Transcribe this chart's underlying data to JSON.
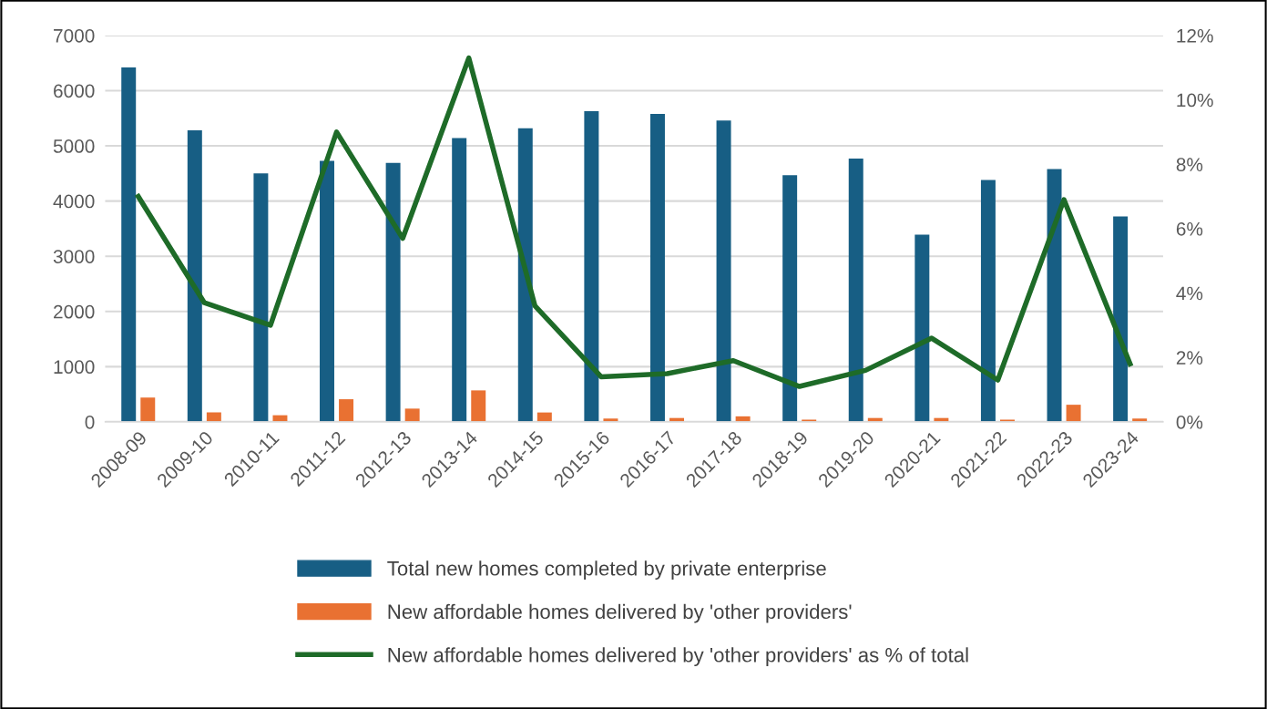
{
  "chart_data": {
    "type": "bar",
    "categories": [
      "2008-09",
      "2009-10",
      "2010-11",
      "2011-12",
      "2012-13",
      "2013-14",
      "2014-15",
      "2015-16",
      "2016-17",
      "2017-18",
      "2018-19",
      "2019-20",
      "2020-21",
      "2021-22",
      "2022-23",
      "2023-24"
    ],
    "series": [
      {
        "name": "Total new homes completed by private enterprise",
        "color": "#175e84",
        "values": [
          6420,
          5280,
          4500,
          4730,
          4690,
          5140,
          5320,
          5630,
          5580,
          5460,
          4470,
          4770,
          3390,
          4380,
          4580,
          3720
        ]
      },
      {
        "name": "New affordable homes delivered by 'other providers'",
        "color": "#e97132",
        "values": [
          440,
          170,
          120,
          410,
          240,
          570,
          170,
          60,
          70,
          100,
          40,
          70,
          70,
          40,
          310,
          60
        ]
      },
      {
        "name": "New affordable homes delivered by 'other providers' as % of total",
        "color": "#1e6b28",
        "type": "line",
        "axis": "y2",
        "values": [
          7.0,
          3.7,
          3.0,
          9.0,
          5.7,
          11.3,
          3.6,
          1.4,
          1.5,
          1.9,
          1.1,
          1.6,
          2.6,
          1.3,
          6.9,
          1.8
        ]
      }
    ],
    "ylim": [
      0,
      7000
    ],
    "yticks": [
      0,
      1000,
      2000,
      3000,
      4000,
      5000,
      6000,
      7000
    ],
    "y2lim": [
      0,
      12
    ],
    "y2ticks": [
      {
        "value": 0,
        "label": "0%"
      },
      {
        "value": 2,
        "label": "2%"
      },
      {
        "value": 4,
        "label": "4%"
      },
      {
        "value": 6,
        "label": "6%"
      },
      {
        "value": 8,
        "label": "8%"
      },
      {
        "value": 10,
        "label": "10%"
      },
      {
        "value": 12,
        "label": "12%"
      }
    ],
    "grid": "y",
    "legend": "bottom",
    "marker": "none",
    "line_style": "solid"
  }
}
